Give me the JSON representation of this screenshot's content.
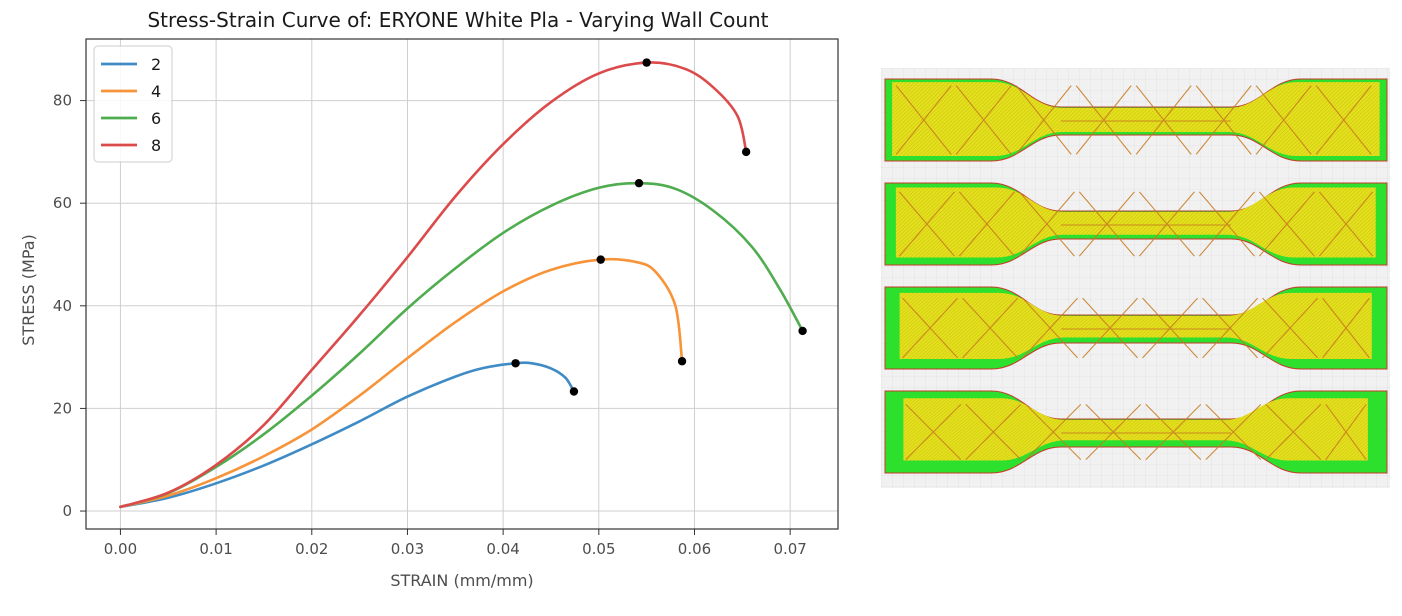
{
  "chart_data": {
    "type": "line",
    "title": "Stress-Strain Curve of: ERYONE White Pla - Varying Wall Count",
    "xlabel": "STRAIN (mm/mm)",
    "ylabel": "STRESS (MPa)",
    "xlim": [
      -0.0036,
      0.075
    ],
    "ylim": [
      -3.5,
      92
    ],
    "xticks": [
      0.0,
      0.01,
      0.02,
      0.03,
      0.04,
      0.05,
      0.06,
      0.07
    ],
    "xtick_labels": [
      "0.00",
      "0.01",
      "0.02",
      "0.03",
      "0.04",
      "0.05",
      "0.06",
      "0.07"
    ],
    "yticks": [
      0,
      20,
      40,
      60,
      80
    ],
    "ytick_labels": [
      "0",
      "20",
      "40",
      "60",
      "80"
    ],
    "grid": true,
    "legend_position": "top-left",
    "series": [
      {
        "name": "2",
        "color": "#3f8bc5",
        "points": [
          [
            0.0,
            0.8
          ],
          [
            0.005,
            2.6
          ],
          [
            0.01,
            5.4
          ],
          [
            0.015,
            8.9
          ],
          [
            0.02,
            13.0
          ],
          [
            0.025,
            17.5
          ],
          [
            0.03,
            22.3
          ],
          [
            0.035,
            26.2
          ],
          [
            0.038,
            27.9
          ],
          [
            0.0413,
            28.8
          ],
          [
            0.043,
            28.8
          ],
          [
            0.045,
            27.8
          ],
          [
            0.0465,
            26.0
          ],
          [
            0.0474,
            23.3
          ]
        ],
        "markers": [
          [
            0.0413,
            28.8
          ],
          [
            0.0474,
            23.3
          ]
        ]
      },
      {
        "name": "4",
        "color": "#f7943a",
        "points": [
          [
            0.0,
            0.8
          ],
          [
            0.005,
            3.0
          ],
          [
            0.01,
            6.4
          ],
          [
            0.015,
            10.7
          ],
          [
            0.02,
            15.9
          ],
          [
            0.025,
            22.5
          ],
          [
            0.03,
            29.8
          ],
          [
            0.035,
            36.8
          ],
          [
            0.04,
            42.8
          ],
          [
            0.045,
            47.0
          ],
          [
            0.0502,
            49.0
          ],
          [
            0.054,
            48.5
          ],
          [
            0.056,
            46.5
          ],
          [
            0.058,
            40.0
          ],
          [
            0.0587,
            29.2
          ]
        ],
        "markers": [
          [
            0.0502,
            49.0
          ],
          [
            0.0587,
            29.2
          ]
        ]
      },
      {
        "name": "6",
        "color": "#4fac4f",
        "points": [
          [
            0.0,
            0.8
          ],
          [
            0.005,
            3.5
          ],
          [
            0.01,
            8.6
          ],
          [
            0.015,
            15.0
          ],
          [
            0.02,
            22.5
          ],
          [
            0.025,
            30.7
          ],
          [
            0.03,
            39.5
          ],
          [
            0.035,
            47.3
          ],
          [
            0.04,
            54.2
          ],
          [
            0.045,
            59.5
          ],
          [
            0.05,
            63.0
          ],
          [
            0.0542,
            63.9
          ],
          [
            0.058,
            62.8
          ],
          [
            0.062,
            58.5
          ],
          [
            0.066,
            51.5
          ],
          [
            0.069,
            43.0
          ],
          [
            0.0713,
            35.1
          ]
        ],
        "markers": [
          [
            0.0542,
            63.9
          ],
          [
            0.0713,
            35.1
          ]
        ]
      },
      {
        "name": "8",
        "color": "#dc4b4b",
        "points": [
          [
            0.0,
            0.8
          ],
          [
            0.005,
            3.6
          ],
          [
            0.01,
            9.0
          ],
          [
            0.015,
            16.8
          ],
          [
            0.02,
            27.5
          ],
          [
            0.025,
            38.2
          ],
          [
            0.03,
            49.5
          ],
          [
            0.035,
            61.3
          ],
          [
            0.04,
            71.5
          ],
          [
            0.045,
            79.7
          ],
          [
            0.05,
            85.3
          ],
          [
            0.055,
            87.4
          ],
          [
            0.059,
            86.2
          ],
          [
            0.062,
            82.5
          ],
          [
            0.0645,
            77.0
          ],
          [
            0.0654,
            70.0
          ]
        ],
        "markers": [
          [
            0.055,
            87.4
          ],
          [
            0.0654,
            70.0
          ]
        ]
      }
    ]
  },
  "slicer_images": {
    "colors": {
      "background": "#f1f1f1",
      "grid": "#d9d9d9",
      "infill": "#e2e21b",
      "infill_lines": "#c87a1e",
      "perimeter": "#2ee02e",
      "outer": "#c63a2a"
    },
    "wall_counts": [
      2,
      4,
      6,
      8
    ]
  }
}
